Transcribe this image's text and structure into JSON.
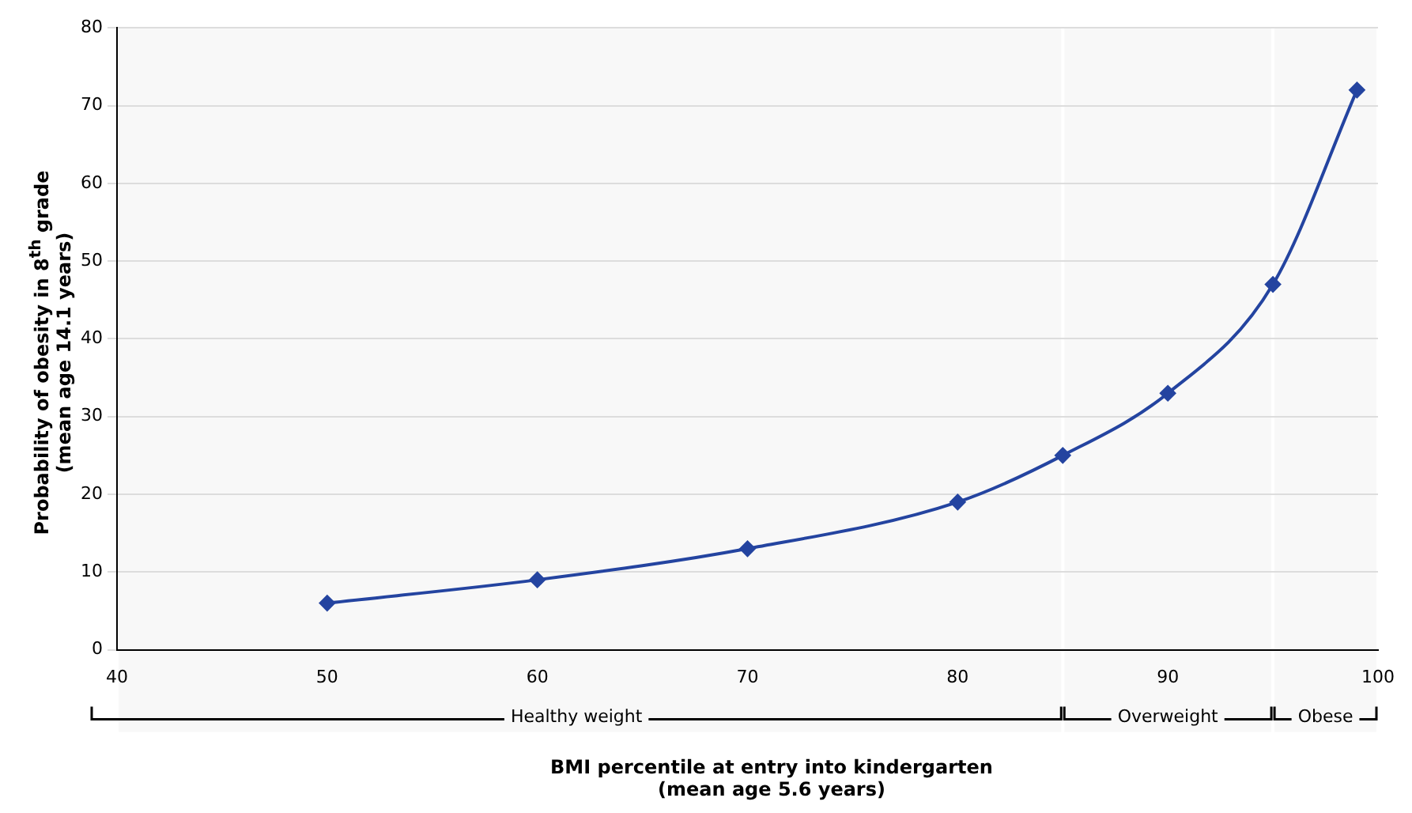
{
  "chart_data": {
    "type": "line",
    "xlabel": "BMI percentile at entry into kindergarten\n(mean age 5.6 years)",
    "ylabel": "Probability of obesity in 8$^{th}$ grade\n(mean age 14.1 years)",
    "x": [
      50,
      60,
      70,
      80,
      85,
      90,
      95,
      99
    ],
    "series": [
      {
        "color": "#2444a0",
        "values": [
          6,
          9,
          13,
          19,
          25,
          33,
          47,
          72
        ]
      }
    ],
    "xlim": [
      40,
      100
    ],
    "xticks": [
      40,
      50,
      60,
      70,
      80,
      90,
      100
    ],
    "ylim": [
      0,
      80
    ],
    "yticks": [
      0,
      10,
      20,
      30,
      40,
      50,
      60,
      70,
      80
    ],
    "grid": "y",
    "legend": false,
    "marker": "diamond",
    "line_style": "solid",
    "bands": [
      {
        "axis": "x",
        "from": 40,
        "to": 85,
        "label": "Healthy weight",
        "color": "#f8f8f8"
      },
      {
        "axis": "x",
        "from": 85,
        "to": 95,
        "label": "Overweight",
        "color": "#f8f8f8"
      },
      {
        "axis": "x",
        "from": 95,
        "to": 100,
        "label": "Obese",
        "color": "#f8f8f8"
      }
    ]
  }
}
